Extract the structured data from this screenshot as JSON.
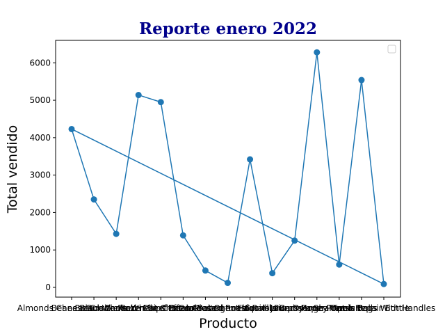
{
  "chart_data": {
    "type": "line",
    "title": "Reporte enero 2022",
    "xlabel": "Producto",
    "ylabel": "Total vendido",
    "categories": [
      "Almonds Cheese Crackers",
      "Beans Black Canned",
      "Bread Whole Wheat",
      "Burrito Frozen Beef Bean",
      "Cake Mix Chocolate",
      "Chips Potato Salted",
      "Coffee Ground Roast",
      "Cookies Oatmeal Raisin",
      "Detergent Liquid Laundry",
      "Flour All Purpose",
      "Granola Bars Honey Oat",
      "Juice Orange Premium",
      "Paper Towels Rolls",
      "Shampoo Repair Bottle",
      "Trash Bags With Handles"
    ],
    "values": [
      4230,
      2350,
      1430,
      5140,
      4950,
      1390,
      450,
      120,
      3420,
      380,
      1250,
      6280,
      610,
      5540,
      90
    ],
    "closing_segment": true,
    "ylim": [
      -260,
      6600
    ],
    "yticks": [
      0,
      1000,
      2000,
      3000,
      4000,
      5000,
      6000
    ],
    "grid": false,
    "legend": "top-right",
    "colors": {
      "series": "#1f77b4",
      "title": "#00008b"
    }
  }
}
